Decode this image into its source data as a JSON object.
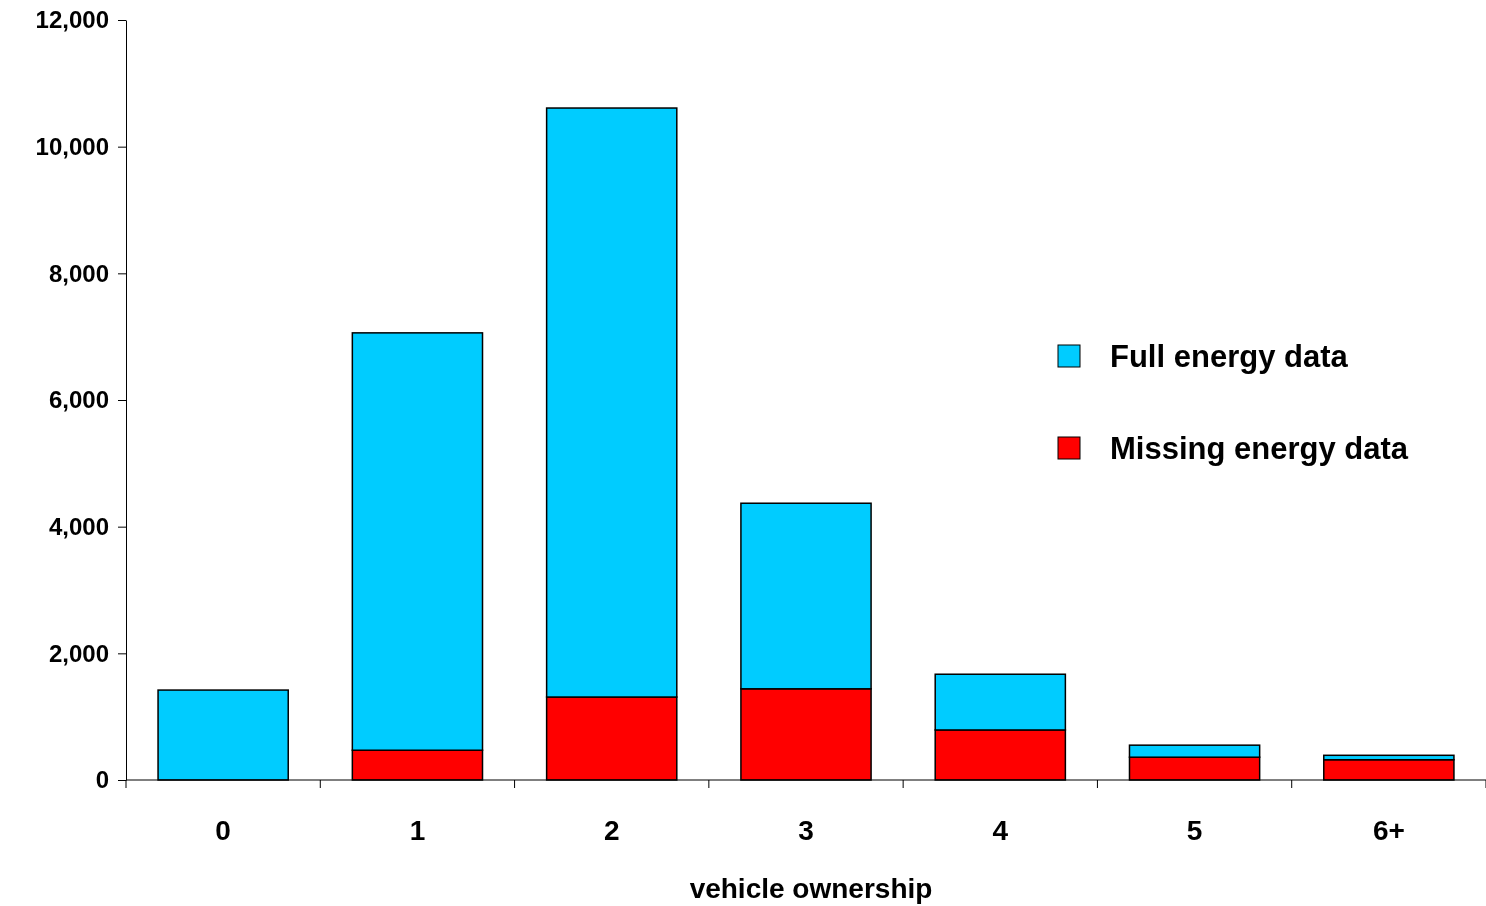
{
  "chart_data": {
    "type": "bar",
    "stacked": true,
    "xlabel": "vehicle ownership",
    "categories": [
      "0",
      "1",
      "2",
      "3",
      "4",
      "5",
      "6+"
    ],
    "series": [
      {
        "name": "Missing energy data",
        "color": "#ff0000",
        "values": [
          0,
          470,
          1310,
          1440,
          790,
          360,
          320
        ]
      },
      {
        "name": "Full energy data",
        "color": "#00ccff",
        "values": [
          1420,
          6590,
          9300,
          2930,
          880,
          190,
          70
        ]
      }
    ],
    "ylim": [
      0,
      12000
    ],
    "yticks": [
      {
        "value": 0,
        "label": "0"
      },
      {
        "value": 2000,
        "label": "2,000"
      },
      {
        "value": 4000,
        "label": "4,000"
      },
      {
        "value": 6000,
        "label": "6,000"
      },
      {
        "value": 8000,
        "label": "8,000"
      },
      {
        "value": 10000,
        "label": "10,000"
      },
      {
        "value": 12000,
        "label": "12,000"
      }
    ],
    "grid": false,
    "legend": "right"
  }
}
